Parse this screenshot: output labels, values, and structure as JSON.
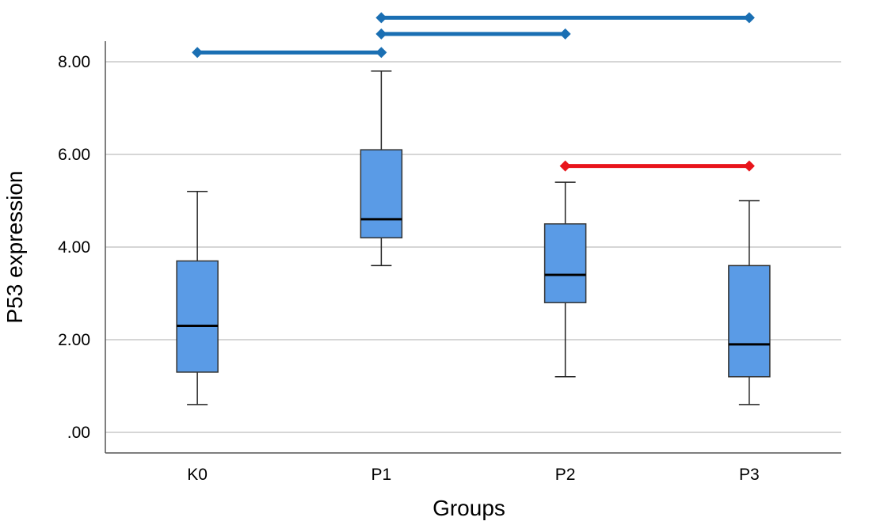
{
  "chart_data": {
    "type": "boxplot",
    "xlabel": "Groups",
    "ylabel": "P53 expression",
    "ylim": [
      0,
      8.4
    ],
    "yticks": [
      0,
      2,
      4,
      6,
      8
    ],
    "ytick_labels": [
      ".00",
      "2.00",
      "4.00",
      "6.00",
      "8.00"
    ],
    "grid": "horizontal",
    "categories": [
      "K0",
      "P1",
      "P2",
      "P3"
    ],
    "boxes": [
      {
        "category": "K0",
        "min": 0.6,
        "q1": 1.3,
        "median": 2.3,
        "q3": 3.7,
        "max": 5.2
      },
      {
        "category": "P1",
        "min": 3.6,
        "q1": 4.2,
        "median": 4.6,
        "q3": 6.1,
        "max": 7.8
      },
      {
        "category": "P2",
        "min": 1.2,
        "q1": 2.8,
        "median": 3.4,
        "q3": 4.5,
        "max": 5.4
      },
      {
        "category": "P3",
        "min": 0.6,
        "q1": 1.2,
        "median": 1.9,
        "q3": 3.6,
        "max": 5.0
      }
    ],
    "box_color": "#5a9be6",
    "comparisons": [
      {
        "from": "K0",
        "to": "P1",
        "level": 8.2,
        "color": "#1a6fb3"
      },
      {
        "from": "P1",
        "to": "P2",
        "level": 8.6,
        "color": "#1a6fb3"
      },
      {
        "from": "P1",
        "to": "P3",
        "level": 8.95,
        "color": "#1a6fb3"
      },
      {
        "from": "P2",
        "to": "P3",
        "level": 5.75,
        "color": "#e8141b"
      }
    ]
  }
}
